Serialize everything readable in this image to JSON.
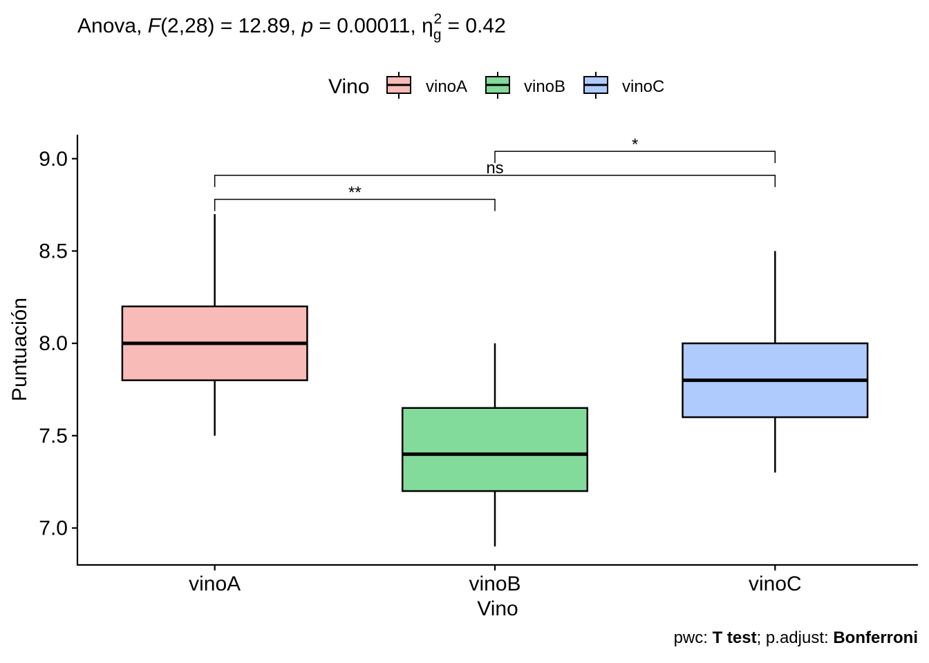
{
  "chart_data": {
    "type": "boxplot",
    "subtitle": {
      "prefix": "Anova, ",
      "f_sym": "F",
      "f_args": "(2,28) = 12.89, ",
      "p_sym": "p",
      "p_val": " = 0.00011, ",
      "eta_sym": "η",
      "eta_sub": "g",
      "eta_sup": "2",
      "eta_val": " = 0.42"
    },
    "legend": {
      "title": "Vino",
      "position": "top",
      "entries": [
        {
          "name": "vinoA",
          "color": "#F8BBB7"
        },
        {
          "name": "vinoB",
          "color": "#82DB9A"
        },
        {
          "name": "vinoC",
          "color": "#AFCBFD"
        }
      ]
    },
    "xlabel": "Vino",
    "ylabel": "Puntuación",
    "ylim": [
      6.8,
      9.13
    ],
    "yticks": [
      7.0,
      7.5,
      8.0,
      8.5,
      9.0
    ],
    "ytick_labels": [
      "7.0",
      "7.5",
      "8.0",
      "8.5",
      "9.0"
    ],
    "categories": [
      "vinoA",
      "vinoB",
      "vinoC"
    ],
    "boxes": [
      {
        "category": "vinoA",
        "color": "#F8BBB7",
        "whisker_low": 7.5,
        "q1": 7.8,
        "median": 8.0,
        "q3": 8.2,
        "whisker_high": 8.7
      },
      {
        "category": "vinoB",
        "color": "#82DB9A",
        "whisker_low": 6.9,
        "q1": 7.2,
        "median": 7.4,
        "q3": 7.65,
        "whisker_high": 8.0
      },
      {
        "category": "vinoC",
        "color": "#AFCBFD",
        "whisker_low": 7.3,
        "q1": 7.6,
        "median": 7.8,
        "q3": 8.0,
        "whisker_high": 8.5
      }
    ],
    "comparisons": [
      {
        "group1": "vinoA",
        "group2": "vinoB",
        "y": 8.78,
        "label": "**"
      },
      {
        "group1": "vinoA",
        "group2": "vinoC",
        "y": 8.91,
        "label": "ns"
      },
      {
        "group1": "vinoB",
        "group2": "vinoC",
        "y": 9.04,
        "label": "*"
      }
    ],
    "caption": {
      "pwc_label": "pwc: ",
      "pwc_value": "T test",
      "adjust_label": "; p.adjust: ",
      "adjust_value": "Bonferroni"
    }
  }
}
